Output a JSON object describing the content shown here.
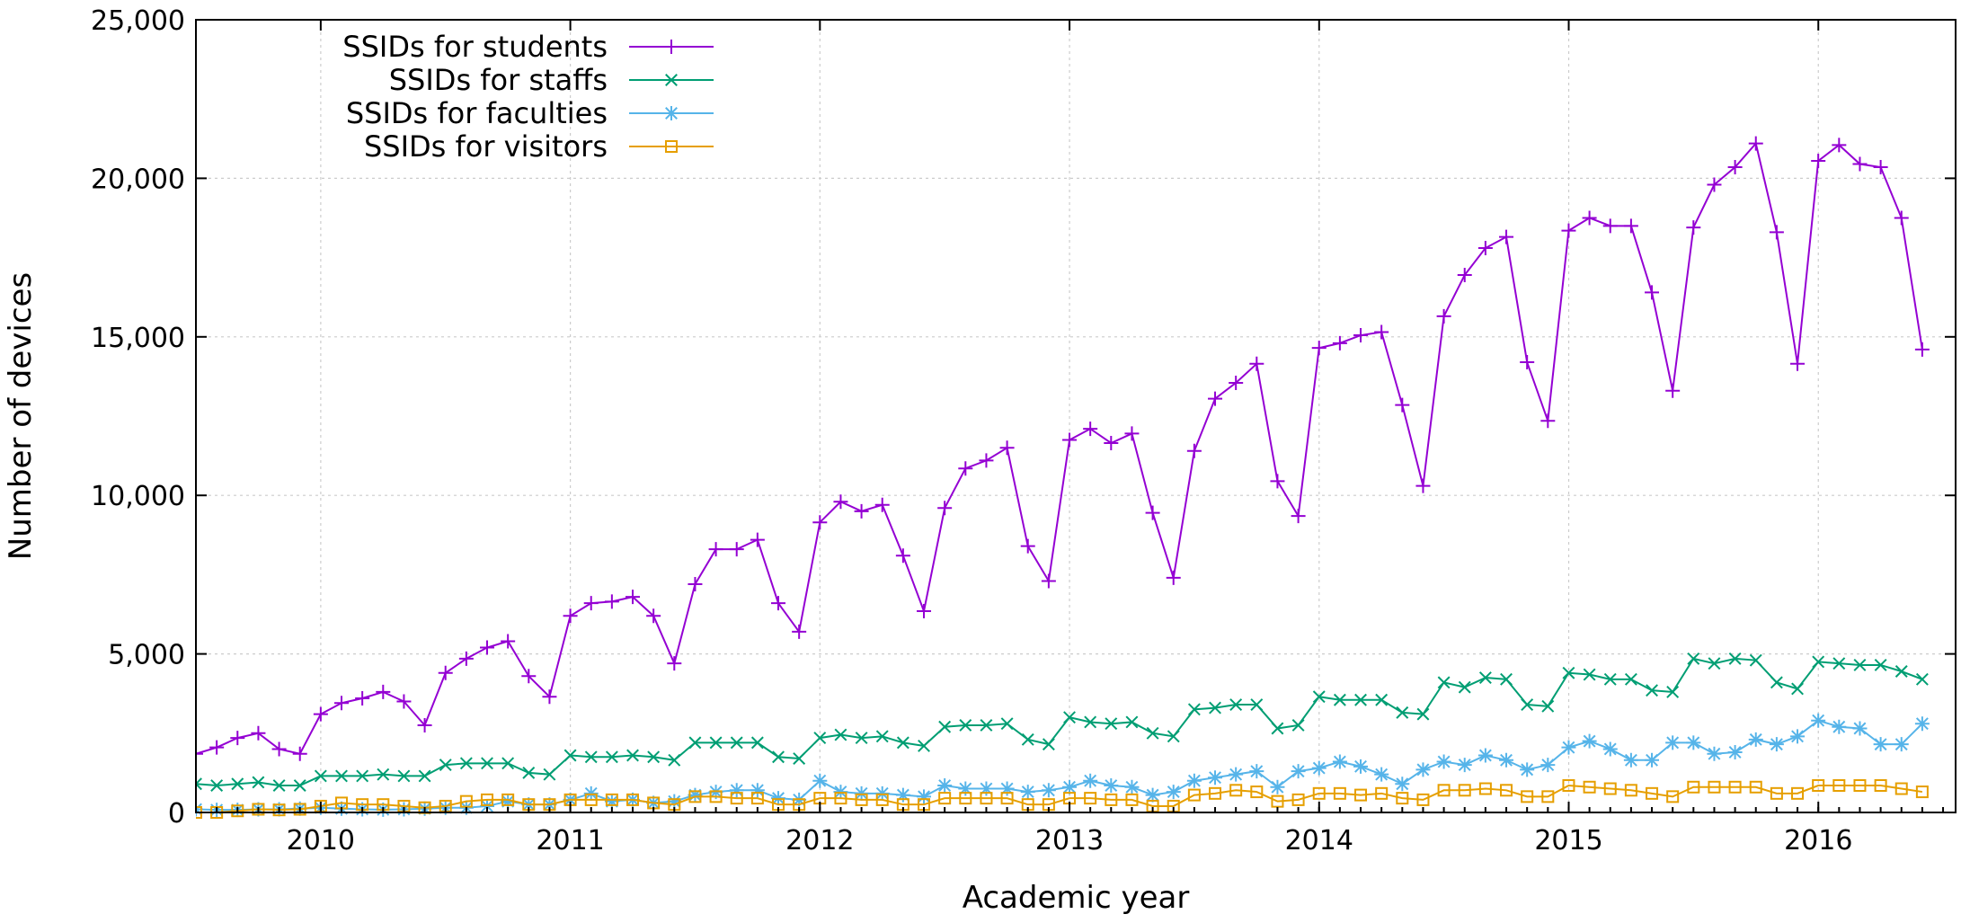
{
  "chart_data": {
    "type": "line",
    "title": "",
    "xlabel": "Academic year",
    "ylabel": "Number of devices",
    "xlim": [
      2009.5,
      2016.55
    ],
    "ylim": [
      0,
      25000
    ],
    "grid": true,
    "legend_position": "top-left",
    "x_tick_values": [
      2010,
      2011,
      2012,
      2013,
      2014,
      2015,
      2016
    ],
    "x_tick_labels": [
      "2010",
      "2011",
      "2012",
      "2013",
      "2014",
      "2015",
      "2016"
    ],
    "y_tick_values": [
      0,
      5000,
      10000,
      15000,
      20000,
      25000
    ],
    "y_tick_labels": [
      "0",
      "5,000",
      "10,000",
      "15,000",
      "20,000",
      "25,000"
    ],
    "x_start": 2009.5,
    "x_step": 0.08333,
    "series": [
      {
        "name": "SSIDs for students",
        "color": "#9400d3",
        "marker": "plus",
        "values": [
          1850,
          2050,
          2350,
          2500,
          2000,
          1850,
          3100,
          3450,
          3600,
          3800,
          3500,
          2750,
          4400,
          4850,
          5200,
          5400,
          4300,
          3650,
          6200,
          6600,
          6650,
          6800,
          6200,
          4700,
          7200,
          8300,
          8300,
          8600,
          6600,
          5700,
          9150,
          9800,
          9500,
          9700,
          8100,
          6350,
          9600,
          10850,
          11100,
          11500,
          8400,
          7300,
          11750,
          12100,
          11650,
          11950,
          9450,
          7400,
          11400,
          13050,
          13550,
          14150,
          10450,
          9350,
          14650,
          14800,
          15050,
          15150,
          12850,
          10300,
          15650,
          16950,
          17800,
          18150,
          14200,
          12350,
          18350,
          18750,
          18500,
          18500,
          16400,
          13300,
          18450,
          19800,
          20350,
          21100,
          18300,
          14150,
          20550,
          21050,
          20450,
          20350,
          18750,
          14600
        ]
      },
      {
        "name": "SSIDs for staffs",
        "color": "#009e73",
        "marker": "x",
        "values": [
          900,
          850,
          900,
          950,
          850,
          850,
          1150,
          1150,
          1150,
          1200,
          1150,
          1150,
          1500,
          1550,
          1550,
          1550,
          1250,
          1200,
          1800,
          1750,
          1750,
          1800,
          1750,
          1650,
          2200,
          2200,
          2200,
          2200,
          1750,
          1700,
          2350,
          2450,
          2350,
          2400,
          2200,
          2100,
          2700,
          2750,
          2750,
          2800,
          2300,
          2150,
          3000,
          2850,
          2800,
          2850,
          2500,
          2400,
          3250,
          3300,
          3400,
          3400,
          2650,
          2750,
          3650,
          3550,
          3550,
          3550,
          3150,
          3100,
          4100,
          3950,
          4250,
          4200,
          3400,
          3350,
          4400,
          4350,
          4200,
          4200,
          3850,
          3800,
          4850,
          4700,
          4850,
          4800,
          4100,
          3900,
          4750,
          4700,
          4650,
          4650,
          4450,
          4200
        ]
      },
      {
        "name": "SSIDs for faculties",
        "color": "#56b4e9",
        "marker": "star",
        "values": [
          100,
          80,
          80,
          100,
          100,
          120,
          150,
          120,
          100,
          90,
          100,
          120,
          150,
          150,
          200,
          350,
          250,
          250,
          400,
          600,
          350,
          400,
          300,
          350,
          550,
          650,
          700,
          700,
          450,
          400,
          1000,
          650,
          600,
          600,
          550,
          500,
          850,
          750,
          750,
          750,
          650,
          700,
          800,
          1000,
          850,
          800,
          550,
          650,
          1000,
          1100,
          1200,
          1300,
          800,
          1300,
          1400,
          1600,
          1450,
          1200,
          900,
          1350,
          1600,
          1500,
          1800,
          1650,
          1350,
          1500,
          2050,
          2250,
          2000,
          1650,
          1650,
          2200,
          2200,
          1850,
          1900,
          2300,
          2150,
          2400,
          2900,
          2700,
          2650,
          2150,
          2150,
          2800
        ]
      },
      {
        "name": "SSIDs for visitors",
        "color": "#e69f00",
        "marker": "square",
        "values": [
          0,
          0,
          50,
          100,
          80,
          100,
          200,
          300,
          250,
          250,
          200,
          150,
          200,
          350,
          400,
          400,
          250,
          250,
          400,
          400,
          400,
          400,
          300,
          250,
          500,
          500,
          450,
          450,
          250,
          250,
          450,
          450,
          400,
          400,
          250,
          250,
          450,
          450,
          450,
          450,
          250,
          250,
          450,
          450,
          400,
          400,
          200,
          200,
          550,
          600,
          700,
          650,
          350,
          400,
          600,
          600,
          550,
          600,
          450,
          400,
          700,
          700,
          750,
          700,
          500,
          500,
          850,
          800,
          750,
          700,
          600,
          500,
          800,
          800,
          800,
          800,
          600,
          600,
          850,
          850,
          850,
          850,
          750,
          650
        ]
      }
    ]
  }
}
